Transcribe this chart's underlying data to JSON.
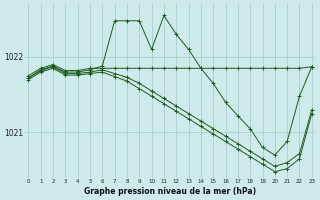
{
  "title": "Graphe pression niveau de la mer (hPa)",
  "background_color": "#ceeaea",
  "grid_color": "#aad4d4",
  "line_color": "#1e5c1e",
  "series": {
    "line1_flat": {
      "x": [
        0,
        1,
        2,
        3,
        4,
        5,
        6,
        7,
        8,
        9,
        10,
        11,
        12,
        13,
        14,
        15,
        16,
        17,
        18,
        19,
        20,
        21,
        22,
        23
      ],
      "y": [
        1021.75,
        1021.85,
        1021.9,
        1021.82,
        1021.82,
        1021.85,
        1021.85,
        1021.85,
        1021.85,
        1021.85,
        1021.85,
        1021.85,
        1021.85,
        1021.85,
        1021.85,
        1021.85,
        1021.85,
        1021.85,
        1021.85,
        1021.85,
        1021.85,
        1021.85,
        1021.85,
        1021.87
      ]
    },
    "line2_spike": {
      "x": [
        0,
        1,
        2,
        3,
        4,
        5,
        6,
        7,
        8,
        9,
        10,
        11,
        12,
        13,
        14,
        15,
        16,
        17,
        18,
        19,
        20,
        21,
        22,
        23
      ],
      "y": [
        1021.72,
        1021.83,
        1021.88,
        1021.8,
        1021.8,
        1021.83,
        1021.88,
        1022.48,
        1022.48,
        1022.48,
        1022.1,
        1022.55,
        1022.3,
        1022.1,
        1021.85,
        1021.65,
        1021.4,
        1021.22,
        1021.05,
        1020.8,
        1020.7,
        1020.88,
        1021.48,
        1021.87
      ]
    },
    "line3_diag": {
      "x": [
        0,
        1,
        2,
        3,
        4,
        5,
        6,
        7,
        8,
        9,
        10,
        11,
        12,
        13,
        14,
        15,
        16,
        17,
        18,
        19,
        20,
        21,
        22,
        23
      ],
      "y": [
        1021.72,
        1021.82,
        1021.87,
        1021.78,
        1021.78,
        1021.8,
        1021.83,
        1021.78,
        1021.73,
        1021.65,
        1021.55,
        1021.45,
        1021.35,
        1021.25,
        1021.15,
        1021.05,
        1020.95,
        1020.85,
        1020.75,
        1020.65,
        1020.55,
        1020.6,
        1020.72,
        1021.3
      ]
    },
    "line4_diag2": {
      "x": [
        0,
        1,
        2,
        3,
        4,
        5,
        6,
        7,
        8,
        9,
        10,
        11,
        12,
        13,
        14,
        15,
        16,
        17,
        18,
        19,
        20,
        21,
        22,
        23
      ],
      "y": [
        1021.7,
        1021.8,
        1021.85,
        1021.76,
        1021.76,
        1021.78,
        1021.8,
        1021.74,
        1021.68,
        1021.58,
        1021.48,
        1021.38,
        1021.28,
        1021.18,
        1021.08,
        1020.98,
        1020.88,
        1020.78,
        1020.68,
        1020.58,
        1020.48,
        1020.52,
        1020.65,
        1021.25
      ]
    }
  },
  "yticks": [
    1021.0,
    1022.0
  ],
  "xticks": [
    0,
    1,
    2,
    3,
    4,
    5,
    6,
    7,
    8,
    9,
    10,
    11,
    12,
    13,
    14,
    15,
    16,
    17,
    18,
    19,
    20,
    21,
    22,
    23
  ],
  "ylim": [
    1020.4,
    1022.7
  ],
  "xlim": [
    -0.3,
    23.3
  ]
}
